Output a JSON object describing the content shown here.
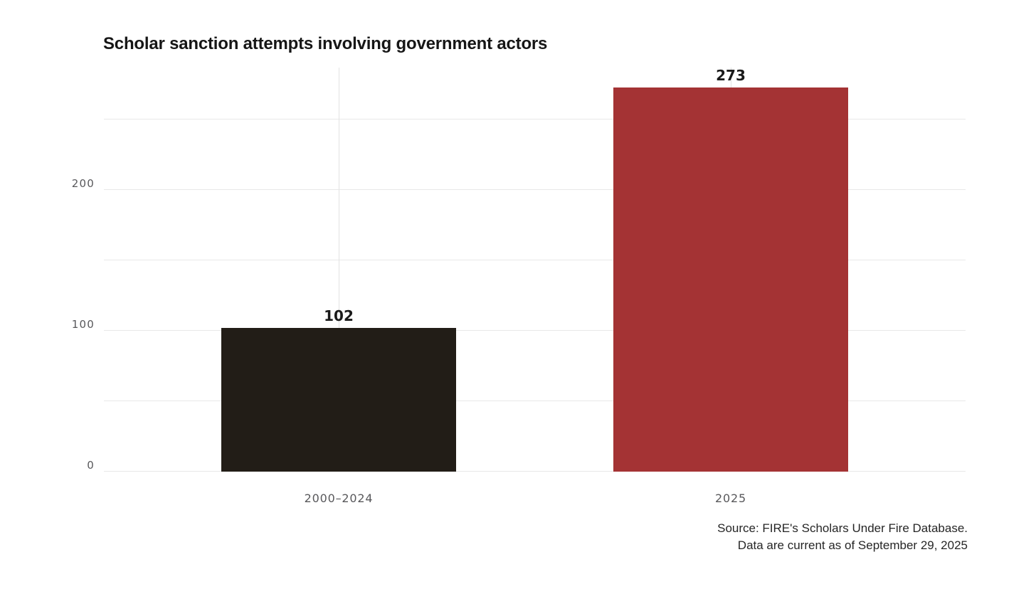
{
  "chart": {
    "title": "Scholar sanction attempts involving government actors",
    "source_line1": "Source: FIRE's Scholars Under Fire Database.",
    "source_line2": "Data are current as of September 29, 2025"
  },
  "chart_data": {
    "type": "bar",
    "title": "Scholar sanction attempts involving government actors",
    "categories": [
      "2000–2024",
      "2025"
    ],
    "values": [
      102,
      273
    ],
    "value_labels": [
      "102",
      "273"
    ],
    "bar_colors": [
      "#221d17",
      "#a43334"
    ],
    "xlabel": "",
    "ylabel": "",
    "ylim": [
      0,
      287
    ],
    "y_ticks": [
      {
        "value": 0,
        "label": "0"
      },
      {
        "value": 100,
        "label": "100"
      },
      {
        "value": 200,
        "label": "200"
      }
    ],
    "y_gridlines": [
      0,
      50,
      100,
      150,
      200,
      250
    ],
    "grid": "horizontal every 50 units, faint vertical line at each category center",
    "legend": "none",
    "background_color": "#ffffff",
    "gridline_color": "#e8e8e8",
    "annotations": [
      "Source: FIRE's Scholars Under Fire Database.",
      "Data are current as of September 29, 2025"
    ]
  }
}
